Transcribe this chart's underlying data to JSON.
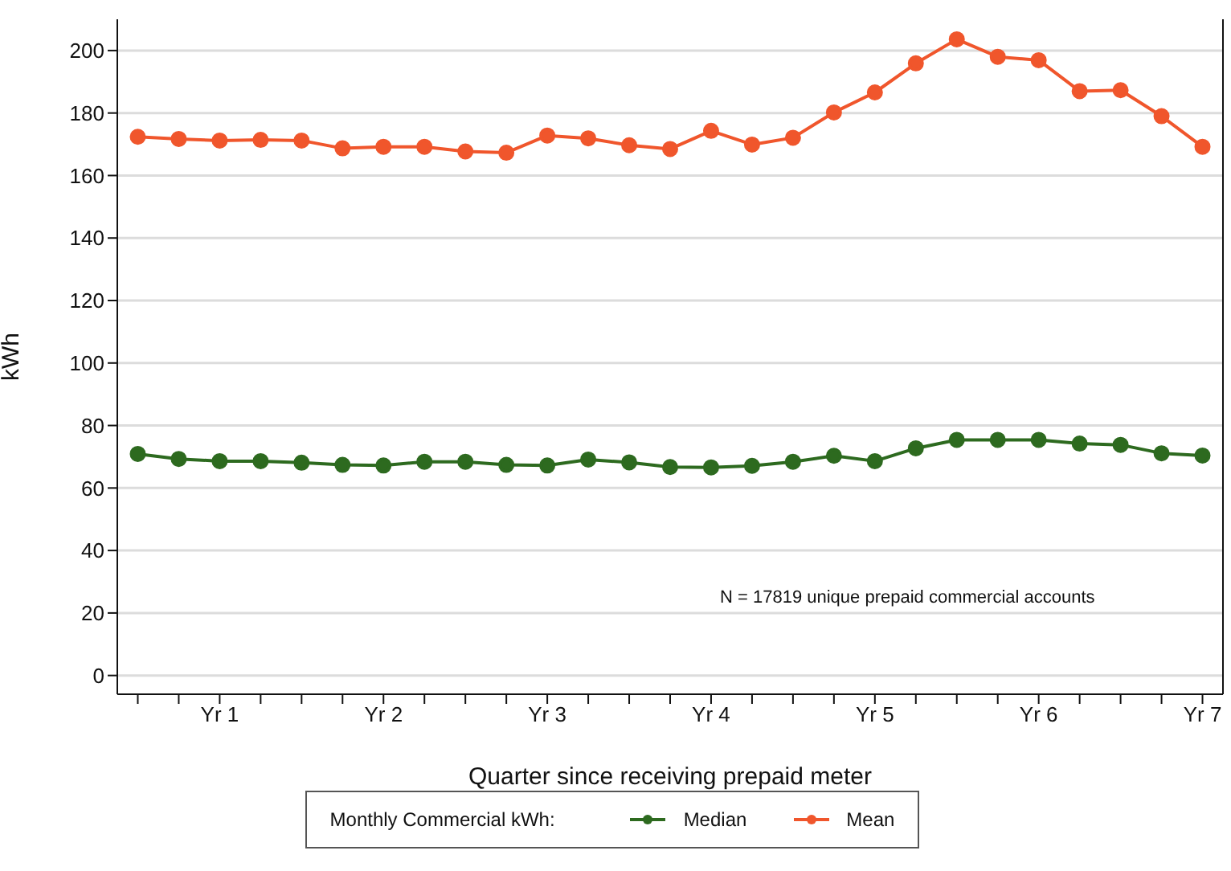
{
  "chart_data": {
    "type": "line",
    "xlabel": "Quarter since receiving prepaid meter",
    "ylabel": "kWh",
    "legend_title": "Monthly Commercial kWh:",
    "legend": "bottom",
    "grid": "y",
    "marker": "circle",
    "line_style": "solid",
    "annotations": [
      "N = 17819 unique prepaid commercial accounts"
    ],
    "categories": [
      null,
      null,
      "Yr 1",
      null,
      null,
      null,
      "Yr 2",
      null,
      null,
      null,
      "Yr 3",
      null,
      null,
      null,
      "Yr 4",
      null,
      null,
      null,
      "Yr 5",
      null,
      null,
      null,
      "Yr 6",
      null,
      null,
      null,
      "Yr 7"
    ],
    "ylim": [
      -6,
      210
    ],
    "yticks": [
      0,
      20,
      40,
      60,
      80,
      100,
      120,
      140,
      160,
      180,
      200
    ],
    "series": [
      {
        "name": "Median",
        "color": "#2d6a1f",
        "values": [
          70.9,
          69.3,
          68.6,
          68.6,
          68.1,
          67.4,
          67.2,
          68.4,
          68.4,
          67.4,
          67.2,
          69.1,
          68.2,
          66.7,
          66.6,
          67.1,
          68.4,
          70.3,
          68.6,
          72.7,
          75.4,
          75.4,
          75.4,
          74.2,
          73.8,
          71.1,
          70.4
        ]
      },
      {
        "name": "Mean",
        "color": "#f0562c",
        "values": [
          172.4,
          171.7,
          171.2,
          171.4,
          171.2,
          168.7,
          169.2,
          169.2,
          167.7,
          167.3,
          172.8,
          171.9,
          169.7,
          168.5,
          174.3,
          169.9,
          172.1,
          180.2,
          186.6,
          195.9,
          203.6,
          198.0,
          196.9,
          187.0,
          187.3,
          179.0,
          169.2
        ]
      }
    ]
  }
}
